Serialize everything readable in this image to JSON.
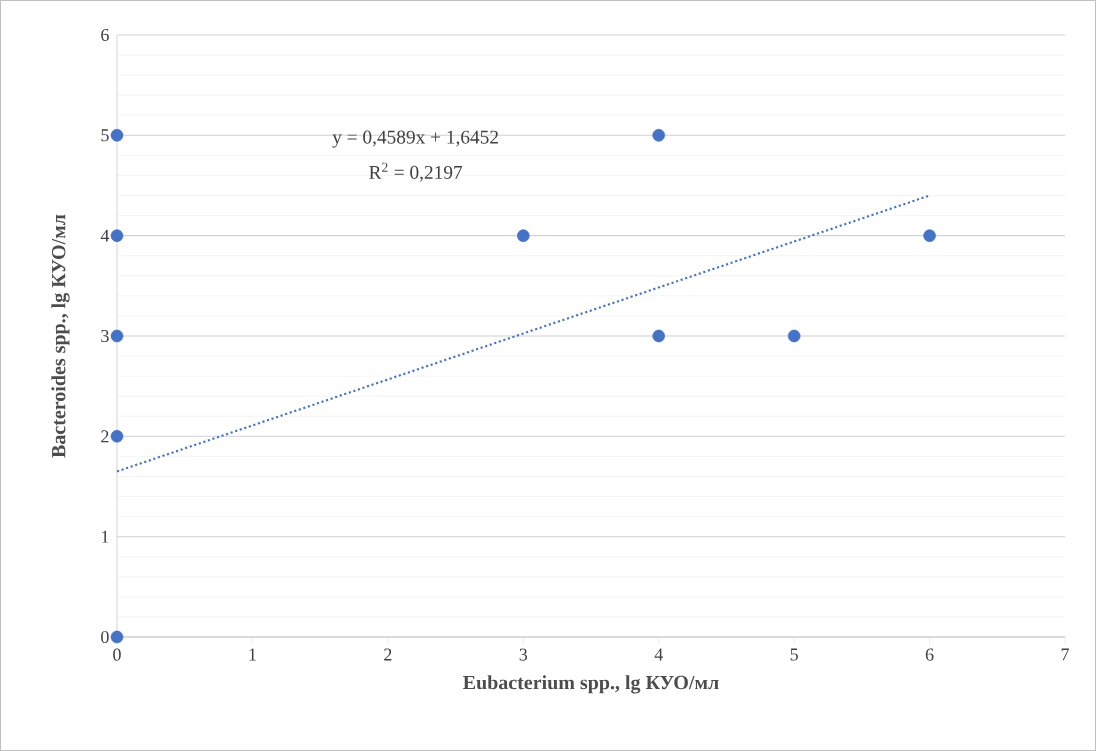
{
  "chart_data": {
    "type": "scatter",
    "xlabel": "Eubacterium spp., lg КУО/мл",
    "ylabel": "Bacteroides spp., lg КУО/мл",
    "xlim": [
      0,
      7
    ],
    "ylim": [
      0,
      6
    ],
    "xticks": [
      0,
      1,
      2,
      3,
      4,
      5,
      6,
      7
    ],
    "yticks": [
      0,
      1,
      2,
      3,
      4,
      5,
      6
    ],
    "grid": "y",
    "marker": "circle",
    "annotations": [
      "y = 0,4589x + 1,6452",
      "R$^{2}$ = 0,2197"
    ],
    "series": [
      {
        "color": "#4472c4",
        "x": [
          0,
          0,
          0,
          0,
          0,
          3,
          4,
          4,
          5,
          6
        ],
        "values": [
          5,
          4,
          3,
          2,
          0,
          4,
          5,
          3,
          3,
          4
        ]
      },
      {
        "type": "line",
        "color": "#4472c4",
        "line_style": "dotted",
        "marker": "none",
        "x": [
          0,
          6
        ],
        "values": [
          1.65,
          4.4
        ]
      }
    ]
  }
}
